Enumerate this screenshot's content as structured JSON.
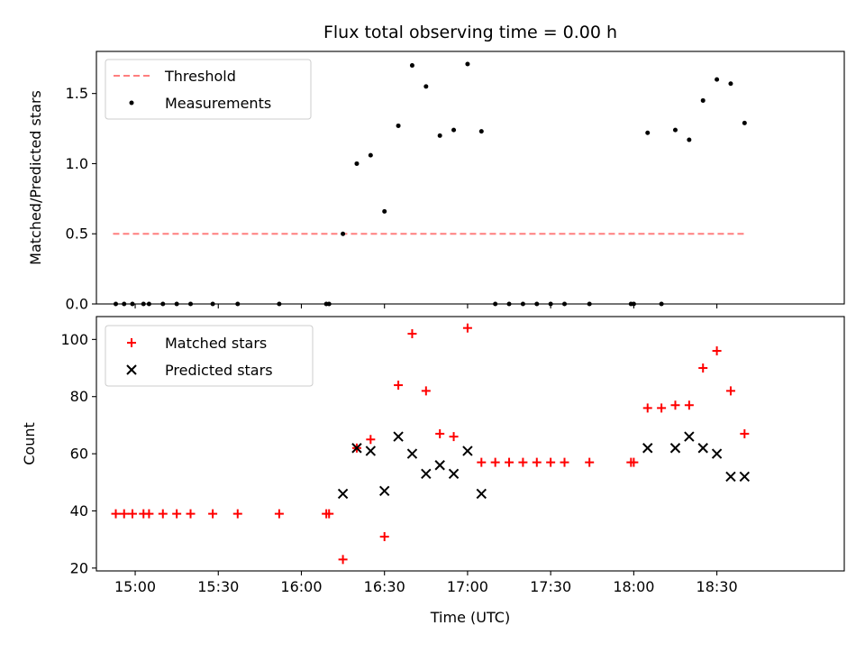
{
  "chart_data": [
    {
      "type": "scatter",
      "title": "Flux total observing time = 0.00 h",
      "xlabel": "",
      "ylabel": "Matched/Predicted stars",
      "ylim": [
        0,
        1.8
      ],
      "yticks": [
        0.0,
        0.5,
        1.0,
        1.5
      ],
      "ytick_labels": [
        "0.0",
        "0.5",
        "1.0",
        "1.5"
      ],
      "xlim": [
        "14:46",
        "19:16"
      ],
      "grid": false,
      "legend_placement": "top-left",
      "threshold": {
        "name": "Threshold",
        "value": 0.5,
        "x_start": "14:52",
        "x_end": "18:41",
        "color": "#ff7f7f",
        "style": "dashed"
      },
      "series": [
        {
          "name": "Measurements",
          "marker": "dot",
          "color": "#000000",
          "x": [
            "14:53",
            "14:56",
            "14:59",
            "15:03",
            "15:05",
            "15:10",
            "15:15",
            "15:20",
            "15:28",
            "15:37",
            "15:52",
            "16:09",
            "16:10",
            "16:15",
            "16:20",
            "16:25",
            "16:30",
            "16:35",
            "16:40",
            "16:45",
            "16:50",
            "16:55",
            "17:00",
            "17:05",
            "17:10",
            "17:15",
            "17:20",
            "17:25",
            "17:30",
            "17:35",
            "17:44",
            "17:59",
            "18:00",
            "18:05",
            "18:10",
            "18:15",
            "18:20",
            "18:25",
            "18:30",
            "18:35",
            "18:40"
          ],
          "y": [
            0,
            0,
            0,
            0,
            0,
            0,
            0,
            0,
            0,
            0,
            0,
            0,
            0,
            0.5,
            1.0,
            1.06,
            0.66,
            1.27,
            1.7,
            1.55,
            1.2,
            1.24,
            1.71,
            1.23,
            0,
            0,
            0,
            0,
            0,
            0,
            0,
            0,
            0,
            1.22,
            0,
            1.24,
            1.17,
            1.45,
            1.6,
            1.57,
            1.29
          ]
        }
      ]
    },
    {
      "type": "scatter",
      "title": "",
      "xlabel": "Time (UTC)",
      "ylabel": "Count",
      "ylim": [
        19,
        108
      ],
      "yticks": [
        20,
        40,
        60,
        80,
        100
      ],
      "ytick_labels": [
        "20",
        "40",
        "60",
        "80",
        "100"
      ],
      "xlim": [
        "14:46",
        "19:16"
      ],
      "xticks": [
        "15:00",
        "15:30",
        "16:00",
        "16:30",
        "17:00",
        "17:30",
        "18:00",
        "18:30"
      ],
      "xtick_labels": [
        "15:00",
        "15:30",
        "16:00",
        "16:30",
        "17:00",
        "17:30",
        "18:00",
        "18:30"
      ],
      "grid": false,
      "legend_placement": "top-left",
      "series": [
        {
          "name": "Matched stars",
          "marker": "plus",
          "color": "#ff0000",
          "x": [
            "14:53",
            "14:56",
            "14:59",
            "15:03",
            "15:05",
            "15:10",
            "15:15",
            "15:20",
            "15:28",
            "15:37",
            "15:52",
            "16:09",
            "16:10",
            "16:15",
            "16:20",
            "16:25",
            "16:30",
            "16:35",
            "16:40",
            "16:45",
            "16:50",
            "16:55",
            "17:00",
            "17:05",
            "17:10",
            "17:15",
            "17:20",
            "17:25",
            "17:30",
            "17:35",
            "17:44",
            "17:59",
            "18:00",
            "18:05",
            "18:10",
            "18:15",
            "18:20",
            "18:25",
            "18:30",
            "18:35",
            "18:40"
          ],
          "y": [
            39,
            39,
            39,
            39,
            39,
            39,
            39,
            39,
            39,
            39,
            39,
            39,
            39,
            23,
            62,
            65,
            31,
            84,
            102,
            82,
            67,
            66,
            104,
            57,
            57,
            57,
            57,
            57,
            57,
            57,
            57,
            57,
            57,
            76,
            76,
            77,
            77,
            90,
            96,
            82,
            67
          ]
        },
        {
          "name": "Predicted stars",
          "marker": "x",
          "color": "#000000",
          "x": [
            "16:15",
            "16:20",
            "16:25",
            "16:30",
            "16:35",
            "16:40",
            "16:45",
            "16:50",
            "16:55",
            "17:00",
            "17:05",
            "18:05",
            "18:15",
            "18:20",
            "18:25",
            "18:30",
            "18:35",
            "18:40"
          ],
          "y": [
            46,
            62,
            61,
            47,
            66,
            60,
            53,
            56,
            53,
            61,
            46,
            62,
            62,
            66,
            62,
            60,
            52,
            52
          ]
        }
      ]
    }
  ]
}
